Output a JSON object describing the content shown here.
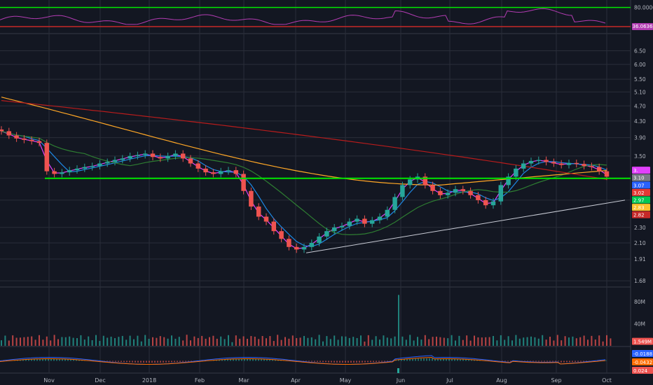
{
  "chart_data": {
    "type": "candlestick",
    "panes": {
      "rsi": {
        "scale_labels": [
          "80.0000"
        ],
        "badge_value": "36.0636",
        "upper_level": 80,
        "lower_level": 30
      },
      "price": {
        "scale_labels": [
          "6.50",
          "6.00",
          "5.50",
          "5.10",
          "4.70",
          "4.30",
          "3.90",
          "3.50",
          "3.07",
          "2.70",
          "2.30",
          "2.10",
          "1.91",
          "1.68"
        ],
        "log_scale": true,
        "badges": [
          {
            "value": "3.",
            "color": "#e040fb"
          },
          {
            "value": "3.10",
            "color": "#787b86"
          },
          {
            "value": "3.07",
            "color": "#2962ff"
          },
          {
            "value": "3.02",
            "color": "#e53935"
          },
          {
            "value": "2.97",
            "color": "#00c853"
          },
          {
            "value": "2.83",
            "color": "#fbc02d"
          },
          {
            "value": "2.82",
            "color": "#c62828"
          }
        ],
        "support_level": 3.07,
        "trendline": {
          "from": [
            "Apr",
            1.98
          ],
          "to": [
            "Oct",
            2.7
          ]
        },
        "candles_approx": [
          4.05,
          3.95,
          3.88,
          3.85,
          3.82,
          3.78,
          3.2,
          3.15,
          3.18,
          3.22,
          3.25,
          3.28,
          3.3,
          3.35,
          3.38,
          3.42,
          3.45,
          3.5,
          3.52,
          3.55,
          3.48,
          3.45,
          3.5,
          3.55,
          3.45,
          3.35,
          3.25,
          3.18,
          3.15,
          3.2,
          3.22,
          3.15,
          2.85,
          2.6,
          2.45,
          2.38,
          2.25,
          2.15,
          2.05,
          2.02,
          2.05,
          2.1,
          2.18,
          2.25,
          2.3,
          2.32,
          2.38,
          2.42,
          2.35,
          2.4,
          2.45,
          2.55,
          2.75,
          2.95,
          3.05,
          3.1,
          2.95,
          2.85,
          2.78,
          2.82,
          2.88,
          2.85,
          2.78,
          2.7,
          2.62,
          2.68,
          2.95,
          3.1,
          3.25,
          3.35,
          3.4,
          3.42,
          3.38,
          3.35,
          3.32,
          3.36,
          3.34,
          3.3,
          3.28,
          3.2,
          3.1
        ],
        "moving_averages": [
          {
            "color": "#e040fb",
            "period_label": "fast"
          },
          {
            "color": "#1e88e5",
            "period_label": "short"
          },
          {
            "color": "#2e7d32",
            "period_label": "medium"
          },
          {
            "color": "#ffa726",
            "period_label": "long"
          },
          {
            "color": "#b71c1c",
            "period_label": "longest"
          }
        ]
      },
      "volume": {
        "scale_labels": [
          "80M",
          "40M"
        ],
        "badge_value": "1.549M",
        "spike_month": "Jun",
        "max": 100
      },
      "macd": {
        "badges": [
          {
            "value": "-0.0188",
            "color": "#2962ff"
          },
          {
            "value": "-0.0432",
            "color": "#ff6d00"
          },
          {
            "value": "0.024",
            "color": "#ef5350"
          }
        ]
      }
    },
    "x_ticks": [
      "Nov",
      "Dec",
      "2018",
      "Feb",
      "Mar",
      "Apr",
      "May",
      "Jun",
      "Jul",
      "Aug",
      "Sep",
      "Oct"
    ],
    "colors": {
      "background": "#131722",
      "grid": "#2a2e39",
      "up": "#26a69a",
      "down": "#ef5350",
      "support_line": "#00e600",
      "rsi_line": "#b23cb2",
      "trendline": "#c9ccd6"
    }
  }
}
